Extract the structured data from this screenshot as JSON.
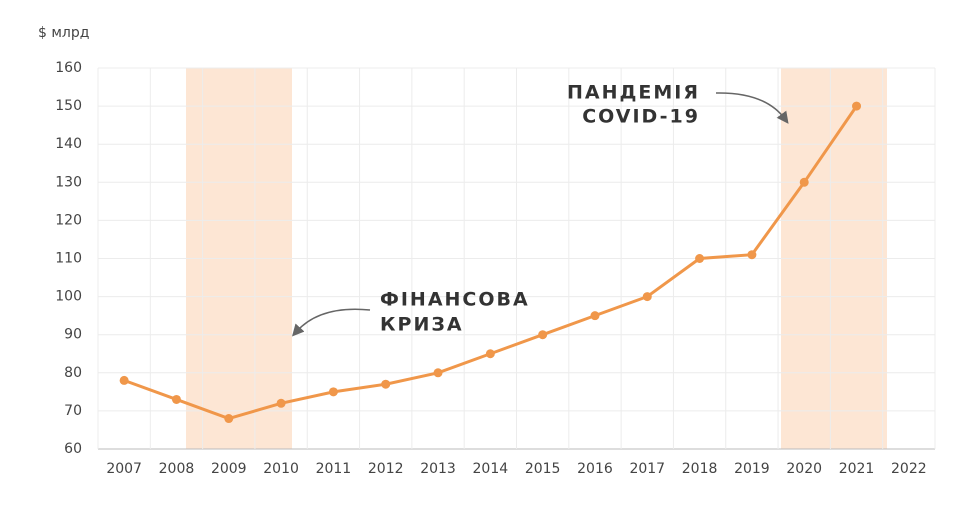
{
  "chart_data": {
    "type": "line",
    "y_label": "$ млрд",
    "categories": [
      "2007",
      "2008",
      "2009",
      "2010",
      "2011",
      "2012",
      "2013",
      "2014",
      "2015",
      "2016",
      "2017",
      "2018",
      "2019",
      "2020",
      "2021",
      "2022"
    ],
    "series": [
      {
        "name": "value",
        "color": "#f0974a",
        "values": [
          78,
          73,
          68,
          72,
          75,
          77,
          80,
          85,
          90,
          95,
          100,
          110,
          111,
          130,
          150,
          null
        ]
      }
    ],
    "ylim": [
      60,
      160
    ],
    "yticks": [
      60,
      70,
      80,
      90,
      100,
      110,
      120,
      130,
      140,
      150,
      160
    ],
    "grid": true,
    "annotations": [
      {
        "lines": [
          "ФІНАНСОВА",
          "КРИЗА"
        ]
      },
      {
        "lines": [
          "ПАНДЕМІЯ",
          "COVID-19"
        ]
      }
    ]
  }
}
